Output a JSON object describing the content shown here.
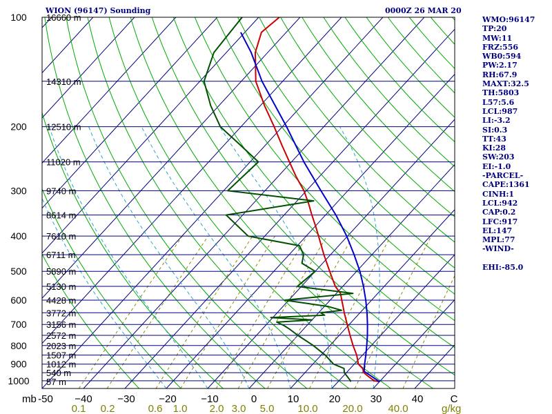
{
  "header": {
    "station": "WION (96147) Sounding",
    "time": "0000Z 26 MAR 20"
  },
  "axes": {
    "pressure_unit": "mb",
    "mixing_ratio_unit": "g/kg",
    "pressure_ticks": [
      "100",
      "200",
      "300",
      "400",
      "500",
      "600",
      "700",
      "800",
      "900",
      "1000"
    ],
    "temperature_ticks": [
      "-50",
      "−40",
      "−30",
      "−20",
      "−10",
      "0",
      "10",
      "20",
      "30",
      "40",
      "C"
    ],
    "mixing_ratio_ticks": [
      "0.1",
      "0.2",
      "0.6",
      "1.0",
      "2.0",
      "3.0",
      "5.0",
      "10.0",
      "20.0",
      "40.0"
    ]
  },
  "height_labels": [
    "16660 m",
    "14310 m",
    "12510 m",
    "11020 m",
    "9740 m",
    "8614 m",
    "7610 m",
    "6711 m",
    "5890 m",
    "5130 m",
    "4428 m",
    "3772 m",
    "3156 m",
    "2572 m",
    "2023 m",
    "1507 m",
    "1012 m",
    "540 m",
    "57 m"
  ],
  "indices": [
    "WMO:96147",
    "TP:20",
    "MW:11",
    "FRZ:556",
    "WB0:594",
    "PW:2.17",
    "RH:67.9",
    "MAXT:32.5",
    "TH:5803",
    "L57:5.6",
    "LCL:987",
    "LI:-3.2",
    "SI:0.3",
    "TT:43",
    "KI:28",
    "SW:203",
    "EI:-1.0",
    "-PARCEL-",
    "CAPE:1361",
    "CINH:1",
    "LCL:942",
    "CAP:0.2",
    "LFC:917",
    "EL:147",
    "MPL:77",
    "-WIND-",
    "",
    "EHI:-85.0"
  ],
  "colors": {
    "background": "#ffffff",
    "frame": "#000000",
    "isobar": "#000080",
    "isotherm": "#000080",
    "dry_adiabat": "#00aa00",
    "moist_adiabat": "#2aa4c8",
    "mixing_ratio": "#8a8a00",
    "temperature": "#cc0000",
    "dewpoint": "#005000",
    "parcel": "#0000cc",
    "header_text": "#000080",
    "mixing_label": "#808000"
  },
  "chart_data": {
    "type": "line",
    "title": "WION (96147) Sounding",
    "subtitle": "0000Z 26 MAR 20",
    "xlabel": "C",
    "ylabel": "mb",
    "y_scale": "log",
    "ylim": [
      1050,
      100
    ],
    "xlim_at_surface": [
      -50,
      50
    ],
    "x_skewed": true,
    "pressure_levels": [
      1000,
      900,
      800,
      700,
      600,
      500,
      400,
      300,
      200,
      100
    ],
    "heights_m": [
      {
        "p": 150,
        "h": 14310
      },
      {
        "p": 100,
        "h": 16660
      },
      {
        "p": 200,
        "h": 12510
      },
      {
        "p": 250,
        "h": 11020
      },
      {
        "p": 300,
        "h": 9740
      },
      {
        "p": 350,
        "h": 8614
      },
      {
        "p": 400,
        "h": 7610
      },
      {
        "p": 450,
        "h": 6711
      },
      {
        "p": 500,
        "h": 5890
      },
      {
        "p": 550,
        "h": 5130
      },
      {
        "p": 600,
        "h": 4428
      },
      {
        "p": 650,
        "h": 3772
      },
      {
        "p": 700,
        "h": 3156
      },
      {
        "p": 750,
        "h": 2572
      },
      {
        "p": 800,
        "h": 2023
      },
      {
        "p": 850,
        "h": 1507
      },
      {
        "p": 900,
        "h": 1012
      },
      {
        "p": 950,
        "h": 540
      },
      {
        "p": 1006,
        "h": 57
      }
    ],
    "series": [
      {
        "name": "Temperature",
        "points": [
          [
            1006,
            30.0
          ],
          [
            1000,
            28.5
          ],
          [
            975,
            26.3
          ],
          [
            950,
            24.2
          ],
          [
            925,
            23.0
          ],
          [
            900,
            21.0
          ],
          [
            850,
            18.6
          ],
          [
            800,
            15.6
          ],
          [
            750,
            12.6
          ],
          [
            700,
            9.5
          ],
          [
            650,
            6.2
          ],
          [
            620,
            4.2
          ],
          [
            600,
            2.8
          ],
          [
            575,
            1.0
          ],
          [
            550,
            -1.8
          ],
          [
            500,
            -6.5
          ],
          [
            450,
            -11.6
          ],
          [
            400,
            -17.0
          ],
          [
            375,
            -20.0
          ],
          [
            350,
            -23.3
          ],
          [
            325,
            -26.7
          ],
          [
            300,
            -30.6
          ],
          [
            275,
            -35.5
          ],
          [
            250,
            -40.5
          ],
          [
            225,
            -46.0
          ],
          [
            200,
            -52.0
          ],
          [
            175,
            -59.0
          ],
          [
            150,
            -66.5
          ],
          [
            125,
            -73.0
          ],
          [
            110,
            -76.0
          ],
          [
            100,
            -75.0
          ]
        ]
      },
      {
        "name": "Dewpoint",
        "points": [
          [
            1006,
            23.0
          ],
          [
            1000,
            22.8
          ],
          [
            950,
            19.5
          ],
          [
            925,
            18.5
          ],
          [
            900,
            15.0
          ],
          [
            850,
            11.0
          ],
          [
            800,
            6.0
          ],
          [
            750,
            0.0
          ],
          [
            720,
            -3.5
          ],
          [
            705,
            -5.5
          ],
          [
            690,
            -8.0
          ],
          [
            680,
            0.0
          ],
          [
            670,
            -10.5
          ],
          [
            660,
            2.0
          ],
          [
            650,
            0.5
          ],
          [
            640,
            5.0
          ],
          [
            625,
            1.0
          ],
          [
            600,
            -11.0
          ],
          [
            575,
            4.0
          ],
          [
            550,
            -11.0
          ],
          [
            500,
            -10.0
          ],
          [
            475,
            -15.0
          ],
          [
            450,
            -16.5
          ],
          [
            425,
            -19.5
          ],
          [
            400,
            -34.0
          ],
          [
            350,
            -44.0
          ],
          [
            320,
            -26.0
          ],
          [
            300,
            -49.0
          ],
          [
            250,
            -48.0
          ],
          [
            225,
            -56.0
          ],
          [
            200,
            -65.0
          ],
          [
            175,
            -72.0
          ],
          [
            150,
            -79.0
          ],
          [
            125,
            -83.0
          ],
          [
            100,
            -84.0
          ]
        ]
      },
      {
        "name": "Parcel",
        "points": [
          [
            1006,
            30.0
          ],
          [
            942,
            24.0
          ],
          [
            900,
            22.5
          ],
          [
            850,
            20.8
          ],
          [
            800,
            18.9
          ],
          [
            750,
            16.8
          ],
          [
            700,
            14.4
          ],
          [
            650,
            11.7
          ],
          [
            600,
            8.6
          ],
          [
            550,
            5.0
          ],
          [
            500,
            0.8
          ],
          [
            450,
            -4.3
          ],
          [
            400,
            -10.2
          ],
          [
            350,
            -17.5
          ],
          [
            300,
            -26.5
          ],
          [
            250,
            -37.0
          ],
          [
            200,
            -49.0
          ],
          [
            150,
            -65.0
          ],
          [
            125,
            -74.0
          ],
          [
            110,
            -81.0
          ]
        ]
      }
    ],
    "background_lines": {
      "isotherms_C": [
        -140,
        -130,
        -120,
        -110,
        -100,
        -90,
        -80,
        -70,
        -60,
        -50,
        -40,
        -30,
        -20,
        -10,
        0,
        10,
        20,
        30,
        40,
        50
      ],
      "mixing_ratios_gkg": [
        0.1,
        0.2,
        0.6,
        1.0,
        2.0,
        3.0,
        5.0,
        10.0,
        20.0,
        40.0
      ],
      "dry_adiabats_thetaC": [
        -30,
        -20,
        -10,
        0,
        10,
        20,
        30,
        40,
        50,
        60,
        70,
        80,
        90,
        100,
        110,
        120,
        130,
        140,
        150,
        160,
        170,
        180,
        190,
        200,
        210,
        220,
        230,
        240
      ],
      "moist_adiabats_surfaceC": [
        -20,
        -10,
        0,
        10,
        20,
        30
      ]
    },
    "grid": true,
    "legend": "none"
  }
}
